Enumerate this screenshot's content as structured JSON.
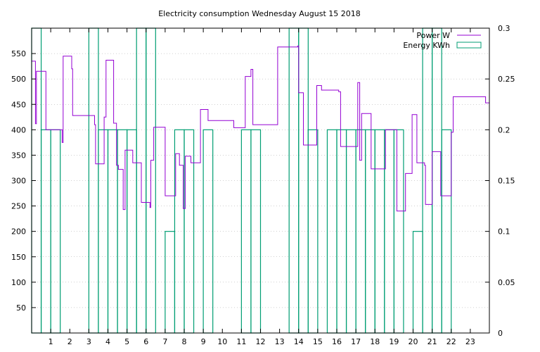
{
  "chart_data": {
    "type": "line",
    "title": "Electricity consumption Wednesday August 15 2018",
    "xlim": [
      0,
      24
    ],
    "ylim": [
      0,
      600
    ],
    "y2lim": [
      0,
      0.3
    ],
    "x_ticks": [
      "1",
      "2",
      "3",
      "4",
      "5",
      "6",
      "7",
      "8",
      "9",
      "10",
      "11",
      "12",
      "13",
      "14",
      "15",
      "16",
      "17",
      "18",
      "19",
      "20",
      "21",
      "22",
      "23"
    ],
    "y_ticks": [
      "50",
      "100",
      "150",
      "200",
      "250",
      "300",
      "350",
      "400",
      "450",
      "500",
      "550"
    ],
    "y2_ticks": [
      "0",
      "0.05",
      "0.1",
      "0.15",
      "0.2",
      "0.25",
      "0.3"
    ],
    "legend_position": "top-right",
    "series": [
      {
        "name": "Power W",
        "axis": "y",
        "color": "#9400d3",
        "style": "step",
        "x": [
          0,
          0.2,
          0.25,
          0.75,
          1.6,
          1.65,
          2.1,
          2.15,
          3.3,
          3.35,
          3.8,
          3.9,
          4.3,
          4.45,
          4.55,
          4.8,
          4.9,
          5.3,
          5.75,
          6.2,
          6.25,
          6.4,
          7.0,
          7.55,
          7.75,
          7.95,
          8.05,
          8.3,
          8.35,
          8.85,
          9.0,
          9.25,
          10.6,
          11.2,
          11.5,
          11.6,
          12.9,
          13.95,
          14.0,
          14.25,
          14.95,
          15.2,
          15.8,
          16.1,
          16.2,
          16.85,
          17.1,
          17.2,
          17.3,
          17.8,
          18.55,
          19.15,
          19.6,
          19.95,
          20.2,
          20.6,
          20.65,
          21.0,
          21.45,
          22.0,
          22.1,
          22.65,
          23.8
        ],
        "y": [
          535,
          412,
          515,
          400,
          375,
          545,
          520,
          428,
          410,
          333,
          425,
          537,
          413,
          330,
          322,
          243,
          360,
          335,
          257,
          247,
          340,
          405,
          270,
          353,
          330,
          245,
          348,
          348,
          335,
          440,
          440,
          418,
          404,
          505,
          519,
          410,
          563,
          565,
          473,
          370,
          487,
          478,
          478,
          475,
          367,
          367,
          493,
          340,
          432,
          323,
          400,
          240,
          314,
          430,
          335,
          330,
          253,
          357,
          270,
          395,
          465,
          465,
          453
        ]
      },
      {
        "name": "Energy KWh",
        "axis": "y2",
        "color": "#009e73",
        "style": "bars",
        "x": [
          0.25,
          0.75,
          1.25,
          3.25,
          3.75,
          4.25,
          4.75,
          5.25,
          5.75,
          6.25,
          7.25,
          7.75,
          8.25,
          9.25,
          11.25,
          11.75,
          13.75,
          14.25,
          14.75,
          15.75,
          16.25,
          16.75,
          17.25,
          17.75,
          18.25,
          18.75,
          19.25,
          20.25,
          20.75,
          21.25,
          21.75
        ],
        "values": [
          0.3,
          0.2,
          0.2,
          0.3,
          0.2,
          0.2,
          0.2,
          0.2,
          0.3,
          0.3,
          0.1,
          0.2,
          0.2,
          0.2,
          0.2,
          0.2,
          0.3,
          0.3,
          0.2,
          0.2,
          0.2,
          0.2,
          0.2,
          0.2,
          0.2,
          0.2,
          0.2,
          0.1,
          0.3,
          0.3,
          0.2
        ]
      }
    ]
  }
}
